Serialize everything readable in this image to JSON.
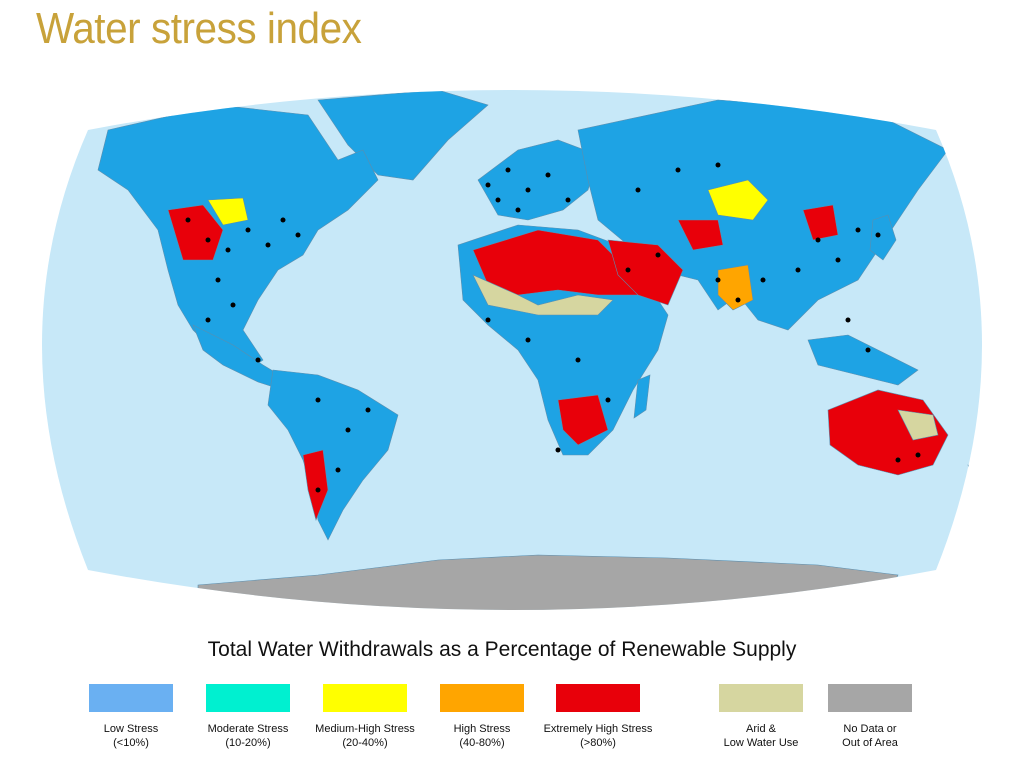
{
  "title": "Water stress index",
  "subtitle": "Total Water Withdrawals as a Percentage of Renewable Supply",
  "colors": {
    "ocean": "#c7e8f8",
    "land_low": "#1ea3e4",
    "moderate": "#00e8c8",
    "medium_high": "#ffff00",
    "high": "#ffa500",
    "extreme": "#e8000a",
    "arid": "#d6d6a0",
    "nodata": "#a6a6a6",
    "city": "#000000"
  },
  "legend": [
    {
      "label": "Low Stress",
      "range": "(<10%)",
      "color": "#6ab0f2"
    },
    {
      "label": "Moderate Stress",
      "range": "(10-20%)",
      "color": "#00f0d0"
    },
    {
      "label": "Medium-High Stress",
      "range": "(20-40%)",
      "color": "#ffff00"
    },
    {
      "label": "High Stress",
      "range": "(40-80%)",
      "color": "#ffa500"
    },
    {
      "label": "Extremely High Stress",
      "range": "(>80%)",
      "color": "#e8000a"
    },
    {
      "label": "Arid &",
      "range": "Low Water Use",
      "color": "#d6d6a0"
    },
    {
      "label": "No Data or",
      "range": "Out of Area",
      "color": "#a6a6a6"
    }
  ]
}
